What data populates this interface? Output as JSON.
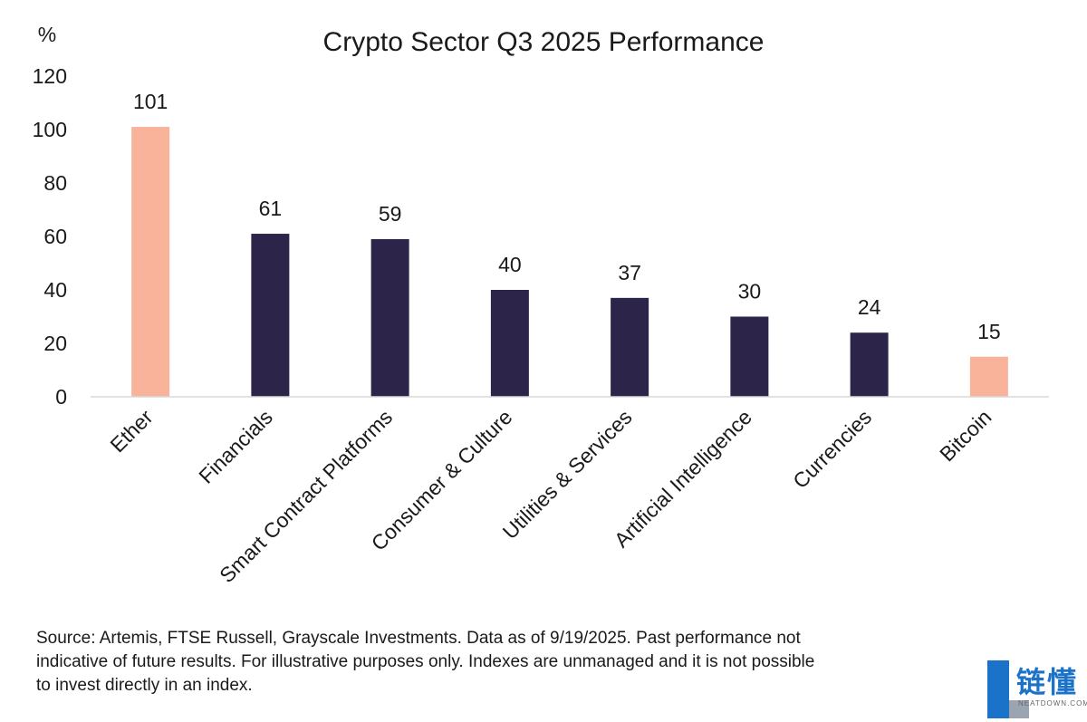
{
  "chart_data": {
    "type": "bar",
    "title": "Crypto Sector Q3 2025 Performance",
    "ylabel": "%",
    "xlabel": "",
    "ylim": [
      0,
      120
    ],
    "yticks": [
      0,
      20,
      40,
      60,
      80,
      100,
      120
    ],
    "grid": false,
    "categories": [
      "Ether",
      "Financials",
      "Smart Contract Platforms",
      "Consumer & Culture",
      "Utilities & Services",
      "Artificial Intelligence",
      "Currencies",
      "Bitcoin"
    ],
    "values": [
      101,
      61,
      59,
      40,
      37,
      30,
      24,
      15
    ],
    "colors": [
      "#F9B39B",
      "#2C2449",
      "#2C2449",
      "#2C2449",
      "#2C2449",
      "#2C2449",
      "#2C2449",
      "#F9B39B"
    ]
  },
  "footer": {
    "source": "Source: Artemis, FTSE Russell, Grayscale Investments. Data as of 9/19/2025. Past performance not\nindicative of future results. For illustrative purposes only. Indexes are unmanaged and it is not possible\nto invest directly in an index."
  },
  "watermark": {
    "brand": "链懂",
    "sub": "NEATDOWN.COM"
  }
}
